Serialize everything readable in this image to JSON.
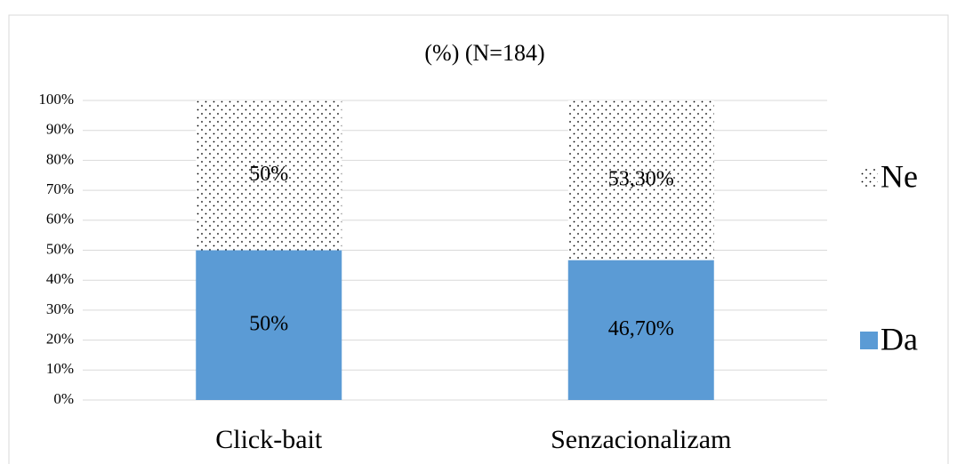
{
  "chart_data": {
    "type": "stacked_bar",
    "title": "(%) (N=184)",
    "categories": [
      "Click-bait",
      "Senzacionalizam"
    ],
    "series": [
      {
        "name": "Da",
        "color": "#5b9bd5",
        "values": [
          50,
          46.7
        ],
        "value_labels": [
          "50%",
          "46,70%"
        ]
      },
      {
        "name": "Ne",
        "color": "#000000",
        "pattern": "dots",
        "values": [
          50,
          53.3
        ],
        "value_labels": [
          "50%",
          "53,30%"
        ]
      }
    ],
    "ylim": [
      0,
      100
    ],
    "yticks": [
      {
        "value": 0,
        "label": "0%"
      },
      {
        "value": 10,
        "label": "10%"
      },
      {
        "value": 20,
        "label": "20%"
      },
      {
        "value": 30,
        "label": "30%"
      },
      {
        "value": 40,
        "label": "40%"
      },
      {
        "value": 50,
        "label": "50%"
      },
      {
        "value": 60,
        "label": "60%"
      },
      {
        "value": 70,
        "label": "70%"
      },
      {
        "value": 80,
        "label": "80%"
      },
      {
        "value": 90,
        "label": "90%"
      },
      {
        "value": 100,
        "label": "100%"
      }
    ],
    "grid": true,
    "legend": "right"
  }
}
